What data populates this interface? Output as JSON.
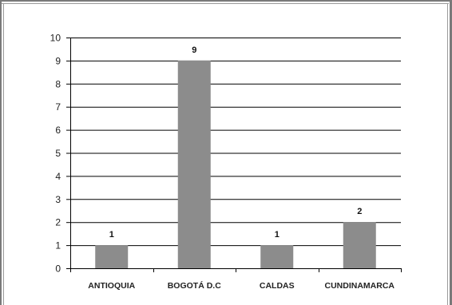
{
  "chart_data": {
    "type": "bar",
    "categories": [
      "ANTIOQUIA",
      "BOGOTÁ D.C",
      "CALDAS",
      "CUNDINAMARCA"
    ],
    "values": [
      1,
      9,
      1,
      2
    ],
    "data_labels": [
      "1",
      "9",
      "1",
      "2"
    ],
    "title": "",
    "xlabel": "",
    "ylabel": "",
    "ylim": [
      0,
      10
    ],
    "yticks": [
      "0",
      "1",
      "2",
      "3",
      "4",
      "5",
      "6",
      "7",
      "8",
      "9",
      "10"
    ],
    "grid": true,
    "legend": "none",
    "bar_color": "#8c8c8c",
    "grid_color": "#000000"
  }
}
